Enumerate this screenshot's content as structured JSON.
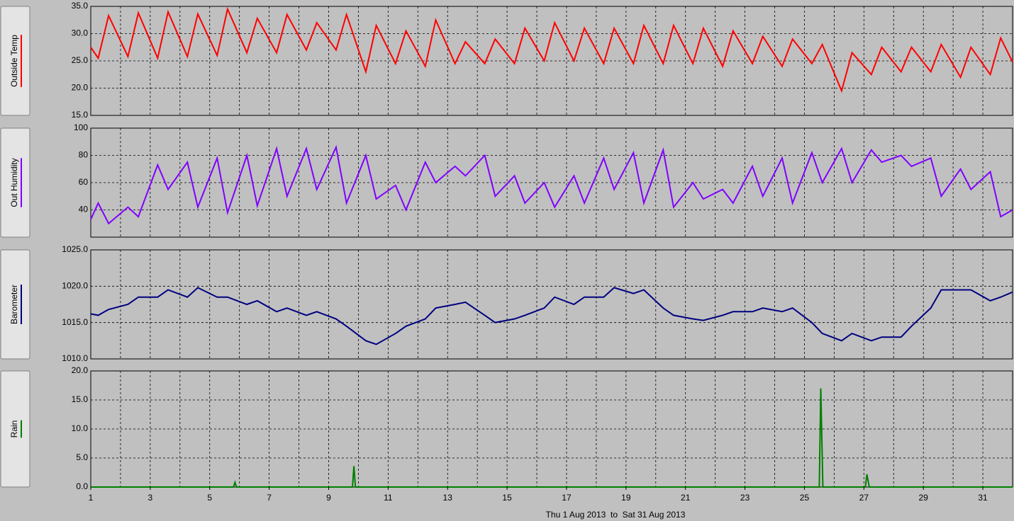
{
  "chart_data": [
    {
      "type": "line",
      "xlim": [
        1,
        32
      ],
      "ylim": [
        15,
        35
      ],
      "yticks": [
        {
          "value": 15,
          "label": "15.0"
        },
        {
          "value": 20,
          "label": "20.0"
        },
        {
          "value": 25,
          "label": "25.0"
        },
        {
          "value": 30,
          "label": "30.0"
        },
        {
          "value": 35,
          "label": "35.0"
        }
      ],
      "x": [
        1,
        1.25,
        1.6,
        2.25,
        2.6,
        3.25,
        3.6,
        4.25,
        4.6,
        5.25,
        5.6,
        6.25,
        6.6,
        7.25,
        7.6,
        8.25,
        8.6,
        9.25,
        9.6,
        10.25,
        10.6,
        11.25,
        11.6,
        12.25,
        12.6,
        13.25,
        13.6,
        14.25,
        14.6,
        15.25,
        15.6,
        16.25,
        16.6,
        17.25,
        17.6,
        18.25,
        18.6,
        19.25,
        19.6,
        20.25,
        20.6,
        21.25,
        21.6,
        22.25,
        22.6,
        23.25,
        23.6,
        24.25,
        24.6,
        25.25,
        25.6,
        26.25,
        26.6,
        27.25,
        27.6,
        28.25,
        28.6,
        29.25,
        29.6,
        30.25,
        30.6,
        31.25,
        31.6,
        32
      ],
      "series": [
        {
          "name": "Outside Temp",
          "color": "#ff0000",
          "values": [
            27.5,
            25.5,
            33.3,
            25.8,
            33.8,
            25.5,
            34,
            25.8,
            33.6,
            26,
            34.5,
            26.5,
            32.8,
            26.5,
            33.5,
            27,
            32,
            27,
            33.5,
            23,
            31.5,
            24.5,
            30.5,
            24,
            32.5,
            24.5,
            28.5,
            24.5,
            29,
            24.5,
            31,
            25,
            32,
            25,
            31,
            24.5,
            31,
            24.5,
            31.5,
            24.5,
            31.5,
            24.5,
            31,
            24,
            30.5,
            24.5,
            29.5,
            24,
            29,
            24.5,
            28,
            19.5,
            26.5,
            22.5,
            27.5,
            23,
            27.5,
            23,
            28,
            22,
            27.5,
            22.5,
            29.2,
            24.8
          ]
        }
      ]
    },
    {
      "type": "line",
      "xlim": [
        1,
        32
      ],
      "ylim": [
        20,
        100
      ],
      "yticks": [
        40,
        60,
        80,
        100
      ],
      "x": [
        1,
        1.25,
        1.6,
        2.25,
        2.6,
        3.25,
        3.6,
        4.25,
        4.6,
        5.25,
        5.6,
        6.25,
        6.6,
        7.25,
        7.6,
        8.25,
        8.6,
        9.25,
        9.6,
        10.25,
        10.6,
        11.25,
        11.6,
        12.25,
        12.6,
        13.25,
        13.6,
        14.25,
        14.6,
        15.25,
        15.6,
        16.25,
        16.6,
        17.25,
        17.6,
        18.25,
        18.6,
        19.25,
        19.6,
        20.25,
        20.6,
        21.25,
        21.6,
        22.25,
        22.6,
        23.25,
        23.6,
        24.25,
        24.6,
        25.25,
        25.6,
        26.25,
        26.6,
        27.25,
        27.6,
        28.25,
        28.6,
        29.25,
        29.6,
        30.25,
        30.6,
        31.25,
        31.6,
        32
      ],
      "series": [
        {
          "name": "Out Humidity",
          "color": "#8000ff",
          "values": [
            33,
            45,
            30,
            42,
            35,
            73,
            55,
            75,
            42,
            78,
            38,
            80,
            43,
            85,
            50,
            85,
            55,
            86,
            45,
            80,
            48,
            58,
            40,
            75,
            60,
            72,
            65,
            80,
            50,
            65,
            45,
            60,
            42,
            65,
            45,
            78,
            55,
            82,
            45,
            84,
            42,
            60,
            48,
            55,
            45,
            72,
            50,
            78,
            45,
            82,
            60,
            85,
            60,
            84,
            75,
            80,
            72,
            78,
            50,
            70,
            55,
            68,
            35,
            40
          ]
        }
      ]
    },
    {
      "type": "line",
      "xlim": [
        1,
        32
      ],
      "ylim": [
        1010,
        1025
      ],
      "yticks": [
        {
          "value": 1010,
          "label": "1010.0"
        },
        {
          "value": 1015,
          "label": "1015.0"
        },
        {
          "value": 1020,
          "label": "1020.0"
        },
        {
          "value": 1025,
          "label": "1025.0"
        }
      ],
      "x": [
        1,
        1.25,
        1.6,
        2.25,
        2.6,
        3.25,
        3.6,
        4.25,
        4.6,
        5.25,
        5.6,
        6.25,
        6.6,
        7.25,
        7.6,
        8.25,
        8.6,
        9.25,
        9.6,
        10.25,
        10.6,
        11.25,
        11.6,
        12.25,
        12.6,
        13.25,
        13.6,
        14.25,
        14.6,
        15.25,
        15.6,
        16.25,
        16.6,
        17.25,
        17.6,
        18.25,
        18.6,
        19.25,
        19.6,
        20.25,
        20.6,
        21.25,
        21.6,
        22.25,
        22.6,
        23.25,
        23.6,
        24.25,
        24.6,
        25.25,
        25.6,
        26.25,
        26.6,
        27.25,
        27.6,
        28.25,
        28.6,
        29.25,
        29.6,
        30.25,
        30.6,
        31.25,
        31.6,
        32
      ],
      "series": [
        {
          "name": "Barometer",
          "color": "#000080",
          "values": [
            1016.2,
            1016,
            1016.8,
            1017.5,
            1018.5,
            1018.5,
            1019.5,
            1018.5,
            1019.8,
            1018.5,
            1018.5,
            1017.5,
            1018,
            1016.5,
            1017,
            1016,
            1016.5,
            1015.5,
            1014.5,
            1012.5,
            1012,
            1013.5,
            1014.5,
            1015.5,
            1017,
            1017.5,
            1017.8,
            1016,
            1015,
            1015.5,
            1016,
            1017,
            1018.5,
            1017.5,
            1018.5,
            1018.5,
            1019.8,
            1019,
            1019.5,
            1017,
            1016,
            1015.5,
            1015.3,
            1016,
            1016.5,
            1016.5,
            1017,
            1016.5,
            1017,
            1015,
            1013.5,
            1012.5,
            1013.5,
            1012.5,
            1013,
            1013,
            1014.5,
            1017,
            1019.5,
            1019.5,
            1019.5,
            1018,
            1018.5,
            1019.2
          ]
        }
      ]
    },
    {
      "type": "line",
      "xlim": [
        1,
        32
      ],
      "ylim": [
        0,
        20
      ],
      "yticks": [
        {
          "value": 0,
          "label": "0.0"
        },
        {
          "value": 5,
          "label": "5.0"
        },
        {
          "value": 10,
          "label": "10.0"
        },
        {
          "value": 15,
          "label": "15.0"
        },
        {
          "value": 20,
          "label": "20.0"
        }
      ],
      "xticks": [
        1,
        3,
        5,
        7,
        9,
        11,
        13,
        15,
        17,
        19,
        21,
        23,
        25,
        27,
        29,
        31
      ],
      "x_minor_ticks": [
        2,
        4,
        6,
        8,
        10,
        12,
        14,
        16,
        18,
        20,
        22,
        24,
        26,
        28,
        30,
        32
      ],
      "xlabel": "Thu 1 Aug 2013  to  Sat 31 Aug 2013",
      "x": [
        1,
        5.8,
        5.85,
        5.9,
        9.8,
        9.85,
        9.9,
        25.5,
        25.55,
        25.62,
        27.05,
        27.1,
        27.18,
        32
      ],
      "series": [
        {
          "name": "Rain",
          "color": "#008000",
          "values": [
            0,
            0,
            0.8,
            0,
            0,
            3.6,
            0,
            0,
            17,
            0,
            0,
            2.2,
            0,
            0
          ]
        }
      ]
    }
  ]
}
